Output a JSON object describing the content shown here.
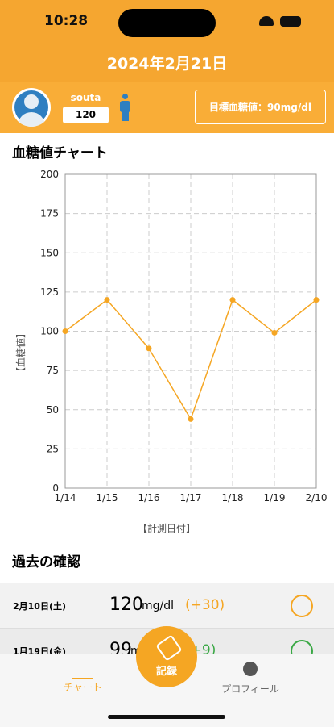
{
  "status_bar": {
    "time": "10:28"
  },
  "header": {
    "date": "2024年2月21日"
  },
  "profile": {
    "name": "souta",
    "value": 120,
    "target": "目標血糖値：90mg/dl"
  },
  "chart_title": "血糖値チャート",
  "chart": {
    "type": "line",
    "categories": [
      "1/14",
      "1/15",
      "1/16",
      "1/17",
      "1/18",
      "1/19",
      "2/10"
    ],
    "values": [
      100,
      120,
      89,
      44,
      120,
      99,
      120
    ],
    "color": "#f5a623",
    "ylim": [
      0,
      200
    ],
    "yticks": [
      0,
      25,
      50,
      75,
      100,
      125,
      150,
      175,
      200
    ],
    "grid": true,
    "y_label": "【血糖値】",
    "x_label": "【計測日付】"
  },
  "history": {
    "title": "過去の確認",
    "rows": [
      {
        "date": "2月10日(土)",
        "value": 120,
        "unit": "mg/dl",
        "diff": "(+30)"
      },
      {
        "date": "1月19日(金)",
        "value": 99,
        "unit": "mg/dl",
        "diff": "(+9)"
      }
    ]
  },
  "tabs": {
    "chart": "チャート",
    "record": "記録",
    "profile": "プロフィール"
  }
}
